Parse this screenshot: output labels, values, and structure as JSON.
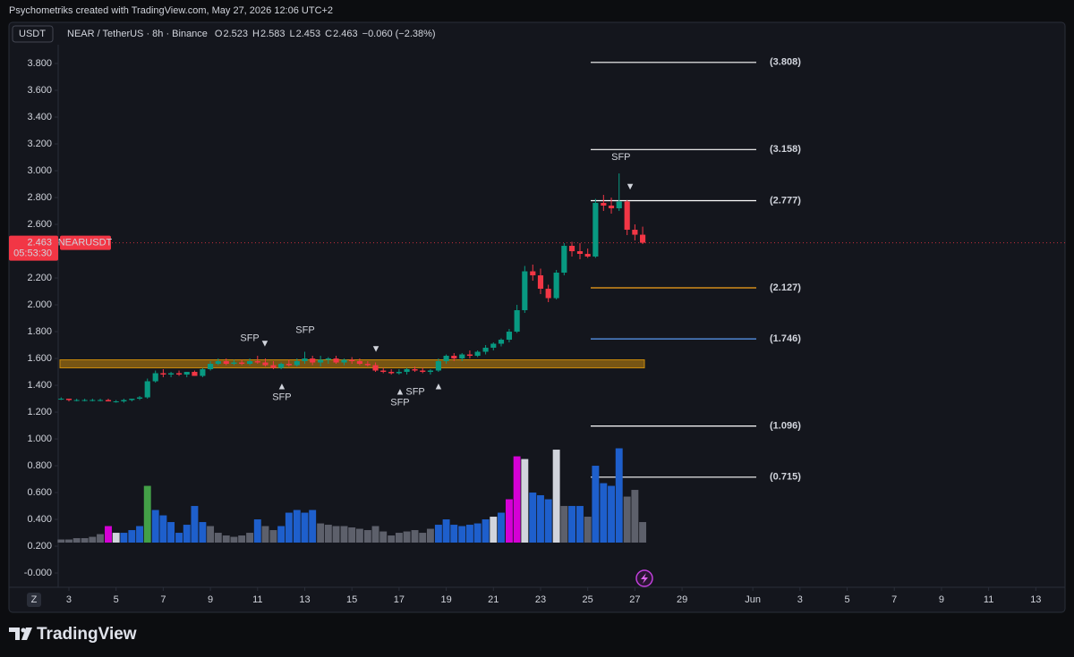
{
  "header": {
    "title": "Psychometriks created with TradingView.com, May 27, 2026 12:06 UTC+2",
    "currency": "USDT",
    "symbol": "NEAR / TetherUS · 8h · Binance",
    "ohlc": [
      {
        "label": "O",
        "value": 2.523
      },
      {
        "label": "H",
        "value": 2.583
      },
      {
        "label": "L",
        "value": 2.453
      },
      {
        "label": "C",
        "value": 2.463
      }
    ],
    "change": "−0.060 (−2.38%)",
    "scale_button": "Z",
    "logo": "TradingView"
  },
  "chart_data": {
    "type": "candlestick",
    "x": [
      2.67,
      3,
      3.33,
      3.67,
      4,
      4.33,
      4.67,
      5,
      5.33,
      5.67,
      6,
      6.33,
      6.67,
      7,
      7.33,
      7.67,
      8,
      8.33,
      8.67,
      9,
      9.33,
      9.67,
      10,
      10.33,
      10.67,
      11,
      11.33,
      11.67,
      12,
      12.33,
      12.67,
      13,
      13.33,
      13.67,
      14,
      14.33,
      14.67,
      15,
      15.33,
      15.67,
      16,
      16.33,
      16.67,
      17,
      17.33,
      17.67,
      18,
      18.33,
      18.67,
      19,
      19.33,
      19.67,
      20,
      20.33,
      20.67,
      21,
      21.33,
      21.67,
      22,
      22.33,
      22.67,
      23,
      23.33,
      23.67,
      24,
      24.33,
      24.67,
      25,
      25.33,
      25.67,
      26,
      26.33,
      26.67,
      27,
      27.33
    ],
    "open": [
      1.3,
      1.3,
      1.29,
      1.29,
      1.29,
      1.29,
      1.29,
      1.28,
      1.28,
      1.29,
      1.3,
      1.31,
      1.43,
      1.49,
      1.48,
      1.49,
      1.48,
      1.5,
      1.47,
      1.52,
      1.56,
      1.58,
      1.56,
      1.57,
      1.56,
      1.58,
      1.57,
      1.55,
      1.53,
      1.56,
      1.55,
      1.58,
      1.6,
      1.57,
      1.59,
      1.6,
      1.57,
      1.59,
      1.58,
      1.56,
      1.55,
      1.51,
      1.5,
      1.49,
      1.5,
      1.52,
      1.51,
      1.5,
      1.51,
      1.58,
      1.62,
      1.6,
      1.63,
      1.62,
      1.65,
      1.68,
      1.71,
      1.74,
      1.8,
      1.96,
      2.25,
      2.22,
      2.12,
      2.05,
      2.24,
      2.44,
      2.4,
      2.38,
      2.36,
      2.76,
      2.74,
      2.72,
      2.77,
      2.56,
      2.523
    ],
    "high": [
      1.31,
      1.3,
      1.3,
      1.3,
      1.3,
      1.3,
      1.3,
      1.29,
      1.3,
      1.3,
      1.32,
      1.45,
      1.51,
      1.52,
      1.5,
      1.51,
      1.5,
      1.51,
      1.53,
      1.58,
      1.6,
      1.6,
      1.59,
      1.59,
      1.6,
      1.62,
      1.6,
      1.58,
      1.57,
      1.59,
      1.6,
      1.65,
      1.62,
      1.62,
      1.61,
      1.62,
      1.6,
      1.61,
      1.6,
      1.58,
      1.57,
      1.53,
      1.52,
      1.52,
      1.53,
      1.54,
      1.53,
      1.52,
      1.6,
      1.63,
      1.64,
      1.64,
      1.66,
      1.66,
      1.7,
      1.72,
      1.75,
      1.82,
      2.0,
      2.29,
      2.3,
      2.27,
      2.15,
      2.26,
      2.46,
      2.47,
      2.46,
      2.42,
      2.79,
      2.82,
      2.8,
      2.98,
      2.78,
      2.6,
      2.583
    ],
    "low": [
      1.29,
      1.28,
      1.28,
      1.28,
      1.28,
      1.28,
      1.28,
      1.27,
      1.27,
      1.28,
      1.29,
      1.3,
      1.42,
      1.46,
      1.46,
      1.47,
      1.46,
      1.47,
      1.46,
      1.51,
      1.55,
      1.55,
      1.55,
      1.55,
      1.55,
      1.56,
      1.54,
      1.52,
      1.52,
      1.54,
      1.54,
      1.56,
      1.55,
      1.54,
      1.56,
      1.56,
      1.55,
      1.56,
      1.55,
      1.54,
      1.5,
      1.49,
      1.48,
      1.48,
      1.48,
      1.5,
      1.49,
      1.48,
      1.5,
      1.56,
      1.58,
      1.58,
      1.6,
      1.61,
      1.63,
      1.66,
      1.69,
      1.72,
      1.79,
      1.94,
      2.18,
      2.08,
      2.02,
      2.04,
      2.22,
      2.36,
      2.34,
      2.35,
      2.35,
      2.7,
      2.68,
      2.7,
      2.52,
      2.48,
      2.453
    ],
    "close": [
      1.3,
      1.29,
      1.29,
      1.29,
      1.29,
      1.29,
      1.28,
      1.28,
      1.29,
      1.3,
      1.31,
      1.43,
      1.49,
      1.48,
      1.49,
      1.48,
      1.5,
      1.47,
      1.52,
      1.56,
      1.58,
      1.56,
      1.57,
      1.56,
      1.58,
      1.57,
      1.55,
      1.53,
      1.56,
      1.55,
      1.58,
      1.6,
      1.57,
      1.59,
      1.6,
      1.57,
      1.59,
      1.58,
      1.56,
      1.55,
      1.51,
      1.5,
      1.49,
      1.5,
      1.52,
      1.51,
      1.5,
      1.51,
      1.58,
      1.62,
      1.6,
      1.63,
      1.62,
      1.65,
      1.68,
      1.71,
      1.74,
      1.8,
      1.96,
      2.25,
      2.22,
      2.12,
      2.05,
      2.24,
      2.44,
      2.4,
      2.38,
      2.36,
      2.76,
      2.74,
      2.72,
      2.77,
      2.56,
      2.523,
      2.463
    ],
    "up_color": "#089981",
    "down_color": "#f23645",
    "volume": {
      "values": [
        0.25,
        0.25,
        0.26,
        0.26,
        0.27,
        0.29,
        0.35,
        0.3,
        0.3,
        0.32,
        0.35,
        0.65,
        0.47,
        0.43,
        0.38,
        0.3,
        0.36,
        0.5,
        0.38,
        0.35,
        0.3,
        0.28,
        0.27,
        0.28,
        0.3,
        0.4,
        0.35,
        0.32,
        0.35,
        0.45,
        0.47,
        0.45,
        0.47,
        0.37,
        0.36,
        0.35,
        0.35,
        0.34,
        0.33,
        0.32,
        0.35,
        0.31,
        0.28,
        0.3,
        0.31,
        0.32,
        0.3,
        0.33,
        0.36,
        0.4,
        0.36,
        0.35,
        0.36,
        0.37,
        0.4,
        0.42,
        0.45,
        0.55,
        0.87,
        0.85,
        0.6,
        0.58,
        0.55,
        0.92,
        0.5,
        0.5,
        0.5,
        0.42,
        0.8,
        0.67,
        0.65,
        0.93,
        0.57,
        0.62,
        0.38
      ],
      "colors": [
        "#5d606b",
        "#5d606b",
        "#5d606b",
        "#5d606b",
        "#5d606b",
        "#5d606b",
        "#d500d5",
        "#d1d4dc",
        "#1e5fcc",
        "#1e5fcc",
        "#1e5fcc",
        "#43a047",
        "#1e5fcc",
        "#1e5fcc",
        "#1e5fcc",
        "#1e5fcc",
        "#1e5fcc",
        "#1e5fcc",
        "#1e5fcc",
        "#5d606b",
        "#5d606b",
        "#5d606b",
        "#5d606b",
        "#5d606b",
        "#5d606b",
        "#1e5fcc",
        "#5d606b",
        "#5d606b",
        "#1e5fcc",
        "#1e5fcc",
        "#1e5fcc",
        "#1e5fcc",
        "#1e5fcc",
        "#5d606b",
        "#5d606b",
        "#5d606b",
        "#5d606b",
        "#5d606b",
        "#5d606b",
        "#5d606b",
        "#5d606b",
        "#5d606b",
        "#5d606b",
        "#5d606b",
        "#5d606b",
        "#5d606b",
        "#5d606b",
        "#5d606b",
        "#1e5fcc",
        "#1e5fcc",
        "#1e5fcc",
        "#1e5fcc",
        "#1e5fcc",
        "#1e5fcc",
        "#1e5fcc",
        "#d1d4dc",
        "#1e5fcc",
        "#d500d5",
        "#d500d5",
        "#d1d4dc",
        "#1e5fcc",
        "#1e5fcc",
        "#1e5fcc",
        "#d1d4dc",
        "#5d606b",
        "#1e5fcc",
        "#1e5fcc",
        "#5d606b",
        "#1e5fcc",
        "#1e5fcc",
        "#1e5fcc",
        "#1e5fcc",
        "#5d606b",
        "#5d606b",
        "#5d606b"
      ]
    },
    "xlim": [
      2.545,
      45.24
    ],
    "xticks": [
      3,
      5,
      7,
      9,
      11,
      13,
      15,
      17,
      19,
      21,
      23,
      25,
      27,
      29,
      {
        "value": 32,
        "label": "Jun"
      },
      {
        "value": 34,
        "label": "3"
      },
      {
        "value": 36,
        "label": "5"
      },
      {
        "value": 38,
        "label": "7"
      },
      {
        "value": 40,
        "label": "9"
      },
      {
        "value": 42,
        "label": "11"
      },
      {
        "value": 44,
        "label": "13"
      }
    ],
    "ylim": [
      -0.093,
      3.94
    ],
    "yticks": [
      {
        "value": 3.8,
        "label": "3.800"
      },
      {
        "value": 3.6,
        "label": "3.600"
      },
      {
        "value": 3.4,
        "label": "3.400"
      },
      {
        "value": 3.2,
        "label": "3.200"
      },
      {
        "value": 3.0,
        "label": "3.000"
      },
      {
        "value": 2.8,
        "label": "2.800"
      },
      {
        "value": 2.6,
        "label": "2.600"
      },
      {
        "value": 2.4,
        "label": "2.400"
      },
      {
        "value": 2.2,
        "label": "2.200"
      },
      {
        "value": 2.0,
        "label": "2.000"
      },
      {
        "value": 1.8,
        "label": "1.800"
      },
      {
        "value": 1.6,
        "label": "1.600"
      },
      {
        "value": 1.4,
        "label": "1.400"
      },
      {
        "value": 1.2,
        "label": "1.200"
      },
      {
        "value": 1.0,
        "label": "1.000"
      },
      {
        "value": 0.8,
        "label": "0.800"
      },
      {
        "value": 0.6,
        "label": "0.600"
      },
      {
        "value": 0.4,
        "label": "0.400"
      },
      {
        "value": 0.2,
        "label": "0.200"
      },
      {
        "value": 0,
        "label": "-0.000"
      }
    ],
    "last_price": {
      "value": 2.463,
      "symbol": "NEARUSDT",
      "countdown": "05:53:30"
    },
    "levels": [
      {
        "value": 3.808,
        "label": "(3.808)",
        "color": "#ffffff"
      },
      {
        "value": 3.158,
        "label": "(3.158)",
        "color": "#ffffff"
      },
      {
        "value": 2.777,
        "label": "(2.777)",
        "color": "#ffffff"
      },
      {
        "value": 2.127,
        "label": "(2.127)",
        "color": "#f7a21b"
      },
      {
        "value": 1.746,
        "label": "(1.746)",
        "color": "#5b9cf6"
      },
      {
        "value": 1.096,
        "label": "(1.096)",
        "color": "#ffffff"
      },
      {
        "value": 0.715,
        "label": "(0.715)",
        "color": "#ffffff"
      }
    ],
    "zone": {
      "low": 1.53,
      "high": 1.59,
      "color": "#c98a0c"
    },
    "annotations": [
      {
        "text": "SFP",
        "x": 10.67,
        "y": 1.75,
        "color": "#f23645"
      },
      {
        "text": "▼",
        "x": 11.31,
        "y": 1.71,
        "color": "#f23645"
      },
      {
        "text": "SFP",
        "x": 13.02,
        "y": 1.81,
        "color": "#f23645"
      },
      {
        "text": "▼",
        "x": 16.02,
        "y": 1.67,
        "color": "#f23645"
      },
      {
        "text": "▲",
        "x": 12.03,
        "y": 1.39,
        "color": "#22ab94"
      },
      {
        "text": "SFP",
        "x": 12.03,
        "y": 1.31,
        "color": "#22ab94"
      },
      {
        "text": "▲",
        "x": 17.04,
        "y": 1.35,
        "color": "#22ab94"
      },
      {
        "text": "SFP",
        "x": 17.69,
        "y": 1.35,
        "color": "#22ab94"
      },
      {
        "text": "SFP",
        "x": 17.04,
        "y": 1.27,
        "color": "#22ab94"
      },
      {
        "text": "▲",
        "x": 18.67,
        "y": 1.39,
        "color": "#22ab94"
      },
      {
        "text": "SFP",
        "x": 26.41,
        "y": 3.1,
        "color": "#f23645"
      },
      {
        "text": "▼",
        "x": 26.8,
        "y": 2.88,
        "color": "#f23645"
      }
    ]
  }
}
